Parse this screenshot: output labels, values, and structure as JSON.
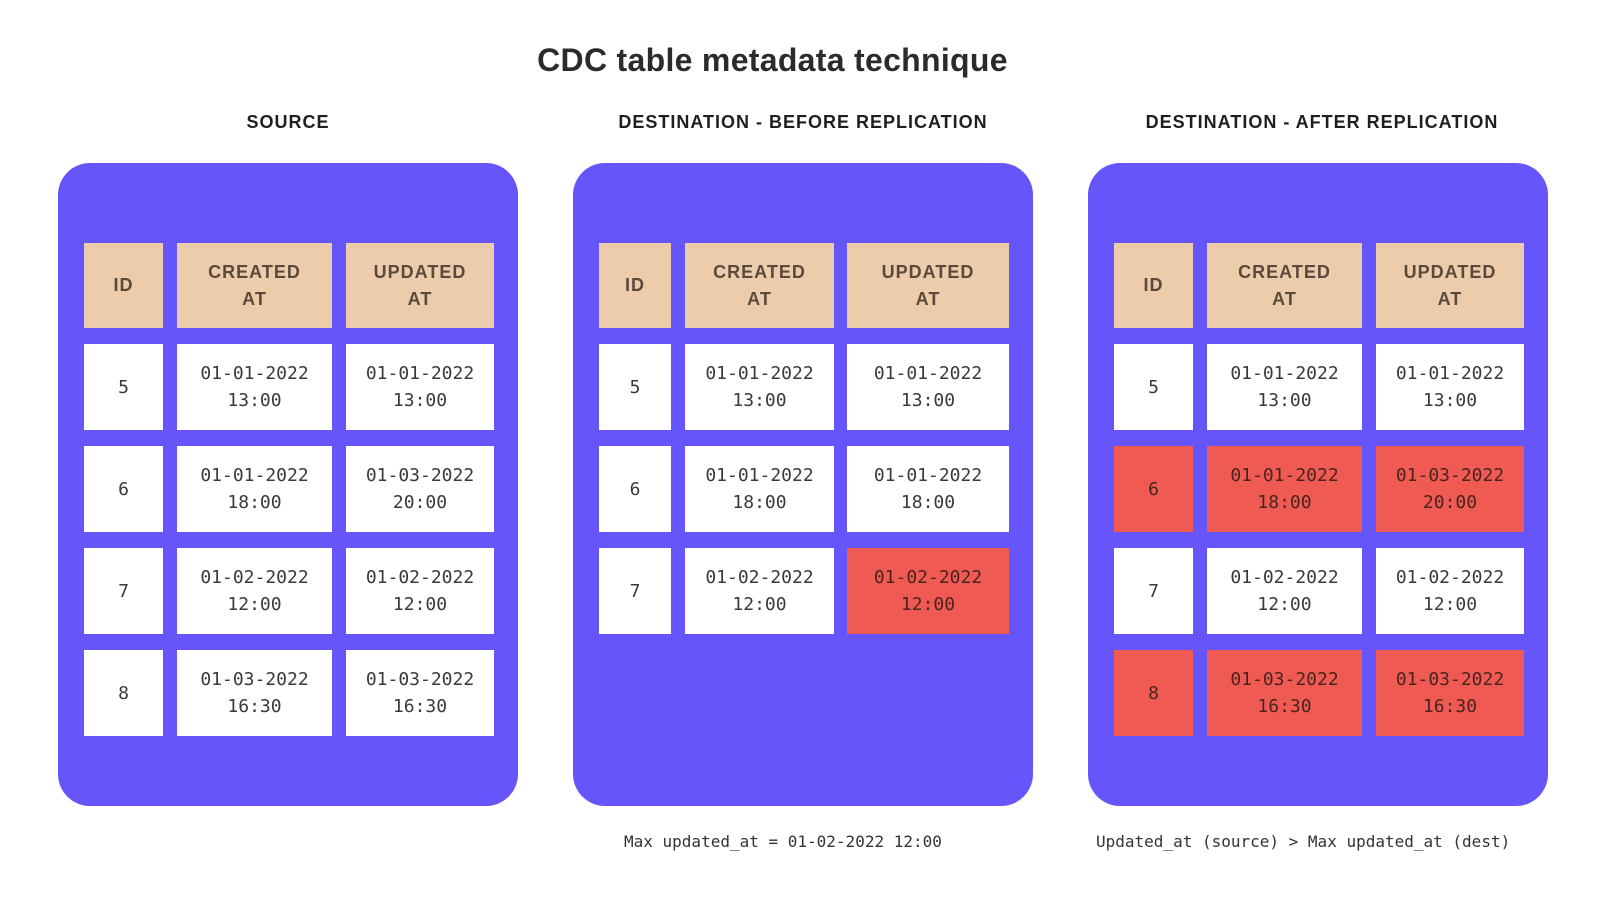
{
  "title": "CDC table metadata technique",
  "headers": {
    "id": "ID",
    "created": "CREATED\nAT",
    "updated": "UPDATED\nAT"
  },
  "colors": {
    "panel": "#6655fb",
    "header_cell": "#ecccaa",
    "value_cell": "#ffffff",
    "highlight": "#ef5b52"
  },
  "panels": [
    {
      "heading": "SOURCE",
      "rows": [
        {
          "id": "5",
          "created": "01-01-2022\n13:00",
          "updated": "01-01-2022\n13:00",
          "highlight": []
        },
        {
          "id": "6",
          "created": "01-01-2022\n18:00",
          "updated": "01-03-2022\n20:00",
          "highlight": []
        },
        {
          "id": "7",
          "created": "01-02-2022\n12:00",
          "updated": "01-02-2022\n12:00",
          "highlight": []
        },
        {
          "id": "8",
          "created": "01-03-2022\n16:30",
          "updated": "01-03-2022\n16:30",
          "highlight": []
        }
      ],
      "footnote": ""
    },
    {
      "heading": "DESTINATION - BEFORE REPLICATION",
      "rows": [
        {
          "id": "5",
          "created": "01-01-2022\n13:00",
          "updated": "01-01-2022\n13:00",
          "highlight": []
        },
        {
          "id": "6",
          "created": "01-01-2022\n18:00",
          "updated": "01-01-2022\n18:00",
          "highlight": []
        },
        {
          "id": "7",
          "created": "01-02-2022\n12:00",
          "updated": "01-02-2022\n12:00",
          "highlight": [
            "updated"
          ]
        }
      ],
      "footnote": "Max updated_at = 01-02-2022 12:00"
    },
    {
      "heading": "DESTINATION - AFTER REPLICATION",
      "rows": [
        {
          "id": "5",
          "created": "01-01-2022\n13:00",
          "updated": "01-01-2022\n13:00",
          "highlight": []
        },
        {
          "id": "6",
          "created": "01-01-2022\n18:00",
          "updated": "01-03-2022\n20:00",
          "highlight": [
            "id",
            "created",
            "updated"
          ]
        },
        {
          "id": "7",
          "created": "01-02-2022\n12:00",
          "updated": "01-02-2022\n12:00",
          "highlight": []
        },
        {
          "id": "8",
          "created": "01-03-2022\n16:30",
          "updated": "01-03-2022\n16:30",
          "highlight": [
            "id",
            "created",
            "updated"
          ]
        }
      ],
      "footnote": "Updated_at (source) > Max updated_at (dest)"
    }
  ]
}
